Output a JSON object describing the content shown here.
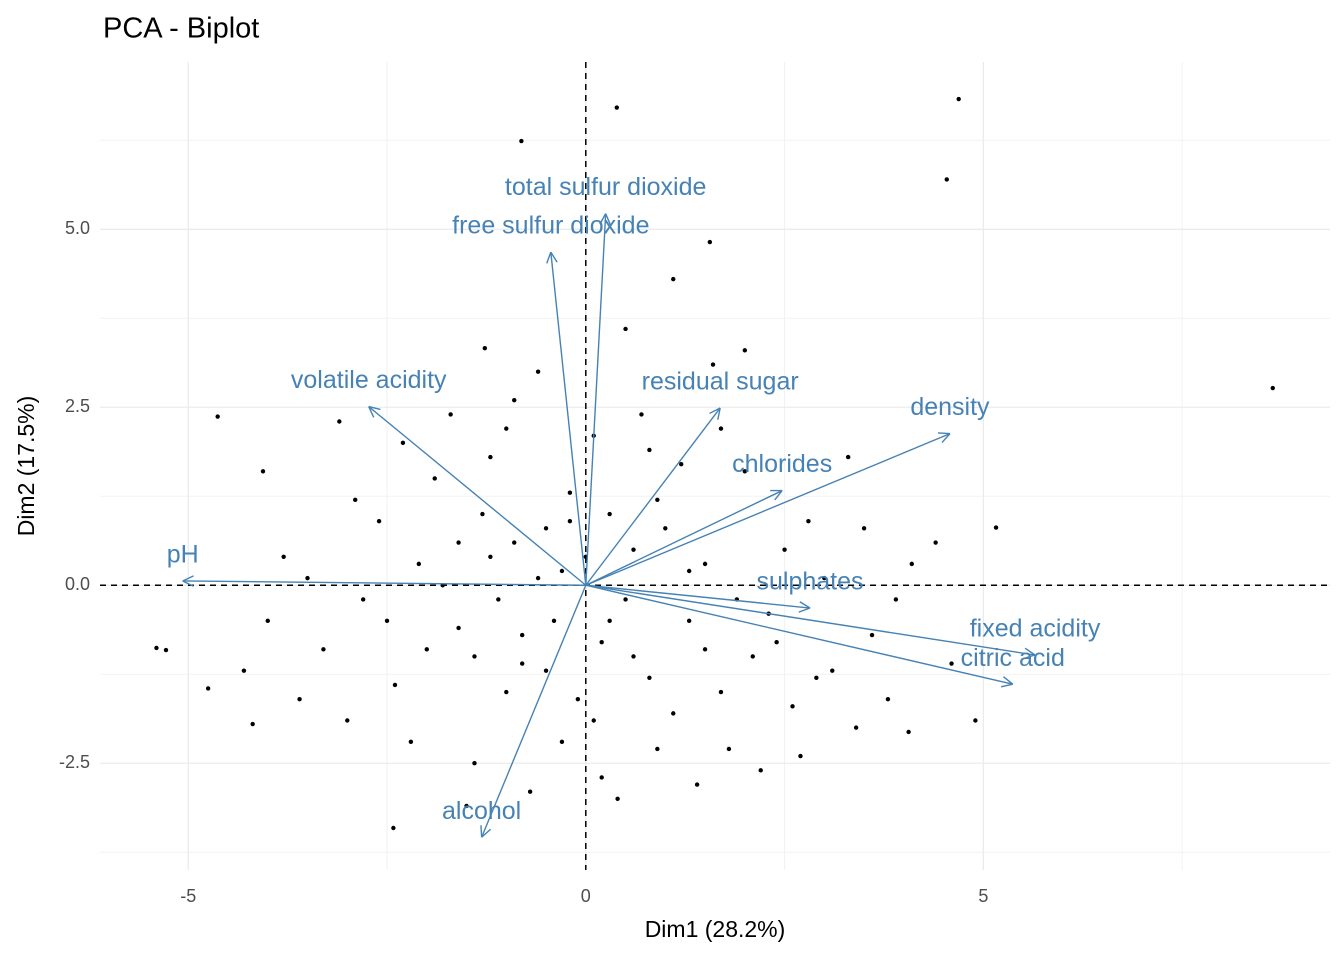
{
  "chart_data": {
    "type": "biplot",
    "title": "PCA - Biplot",
    "x_label": "Dim1 (28.2%)",
    "y_label": "Dim2 (17.5%)",
    "xlim": [
      -6.11,
      9.36
    ],
    "ylim": [
      -4.0,
      7.35
    ],
    "xticks": [
      -5,
      0,
      5
    ],
    "yticks": [
      -2.5,
      {
        "value": 0,
        "label": "0.0"
      },
      2.5,
      {
        "value": 5,
        "label": "5.0"
      }
    ],
    "grid": true,
    "reference_lines": {
      "x": 0,
      "y": 0
    },
    "series": [
      {
        "color": "#000000",
        "x": [
          8.64,
          4.69,
          4.54,
          0.39,
          -0.81,
          -4.63,
          -5.4,
          -5.28,
          -4.75,
          -2.42,
          5.16,
          4.06,
          1.56,
          -1.27,
          -4.06,
          -4.19,
          -0.5,
          0.3,
          -1.2,
          1.5,
          -2.1,
          0.9,
          -0.8,
          2.3,
          -1.6,
          0.1,
          1.1,
          -2.8,
          3.1,
          -0.3,
          0.6,
          -1.9,
          2.8,
          -3.3,
          1.8,
          -0.9,
          0.4,
          3.6,
          -2.4,
          1.3,
          -1.1,
          2.0,
          -0.2,
          0.8,
          -3.8,
          4.1,
          1.6,
          -1.4,
          2.6,
          -0.6,
          0.2,
          -2.6,
          3.4,
          -1.7,
          0.5,
          1.9,
          -0.1,
          -3.0,
          2.2,
          -0.7,
          1.0,
          -1.3,
          4.6,
          -4.3,
          0.7,
          3.0,
          -2.0,
          1.4,
          -0.4,
          2.5,
          -1.8,
          0.0,
          -2.3,
          1.2,
          3.8,
          -3.5,
          0.3,
          -1.0,
          2.1,
          -0.9,
          1.7,
          -2.9,
          4.4,
          -0.5,
          0.9,
          -1.5,
          2.7,
          3.3,
          -3.6,
          0.5,
          -0.2,
          1.5,
          -1.2,
          2.4,
          -2.2,
          0.1,
          3.9,
          -4.0,
          1.1,
          -0.6,
          0.6,
          -1.6,
          2.9,
          -0.3,
          1.3,
          -2.5,
          0.8,
          -1.0,
          4.9,
          -3.1,
          0.2,
          2.0,
          -0.8,
          1.7,
          -1.4,
          3.5
        ],
        "y": [
          2.77,
          6.83,
          5.7,
          6.71,
          6.24,
          2.37,
          -0.88,
          -0.91,
          -1.45,
          -3.41,
          0.81,
          -2.06,
          4.82,
          3.33,
          1.6,
          -1.95,
          0.8,
          -0.5,
          0.4,
          -0.9,
          0.3,
          1.2,
          -1.1,
          -0.4,
          -0.6,
          2.1,
          -1.8,
          -0.2,
          -1.2,
          -2.2,
          0.5,
          1.5,
          0.9,
          -0.9,
          -2.3,
          2.6,
          -3.0,
          -0.7,
          -1.4,
          0.2,
          -0.2,
          1.6,
          1.3,
          -1.3,
          0.4,
          0.3,
          3.1,
          -2.5,
          -1.7,
          0.1,
          -0.8,
          0.9,
          -2.0,
          2.4,
          3.6,
          -0.2,
          -1.6,
          -1.9,
          -2.6,
          -2.9,
          0.8,
          1.0,
          -1.1,
          -1.2,
          2.4,
          0.1,
          -0.9,
          -2.8,
          -0.5,
          0.5,
          0.0,
          0.4,
          2.0,
          1.7,
          -1.6,
          0.1,
          1.0,
          -1.5,
          -1.0,
          0.6,
          2.2,
          1.2,
          0.6,
          -1.2,
          -2.3,
          -3.1,
          -2.4,
          1.8,
          -1.6,
          -0.2,
          0.9,
          0.3,
          1.8,
          -0.8,
          -2.2,
          -1.9,
          -0.2,
          -0.5,
          4.3,
          3.0,
          -1.0,
          0.6,
          -1.3,
          0.2,
          -0.5,
          -0.5,
          1.9,
          2.2,
          -1.9,
          2.3,
          -2.7,
          3.3,
          -0.7,
          -1.5,
          -1.0,
          0.8
        ]
      }
    ],
    "arrow_color": "#4682b4",
    "arrows": [
      {
        "name": "pH",
        "x": -5.07,
        "y": 0.06
      },
      {
        "name": "volatile acidity",
        "x": -2.73,
        "y": 2.51
      },
      {
        "name": "free sulfur dioxide",
        "x": -0.44,
        "y": 4.68
      },
      {
        "name": "total sulfur dioxide",
        "x": 0.25,
        "y": 5.22
      },
      {
        "name": "residual sugar",
        "x": 1.69,
        "y": 2.49
      },
      {
        "name": "density",
        "x": 4.58,
        "y": 2.13
      },
      {
        "name": "chlorides",
        "x": 2.47,
        "y": 1.33
      },
      {
        "name": "sulphates",
        "x": 2.82,
        "y": -0.32
      },
      {
        "name": "fixed acidity",
        "x": 5.65,
        "y": -0.98
      },
      {
        "name": "citric acid",
        "x": 5.37,
        "y": -1.39
      },
      {
        "name": "alcohol",
        "x": -1.31,
        "y": -3.54
      }
    ]
  }
}
